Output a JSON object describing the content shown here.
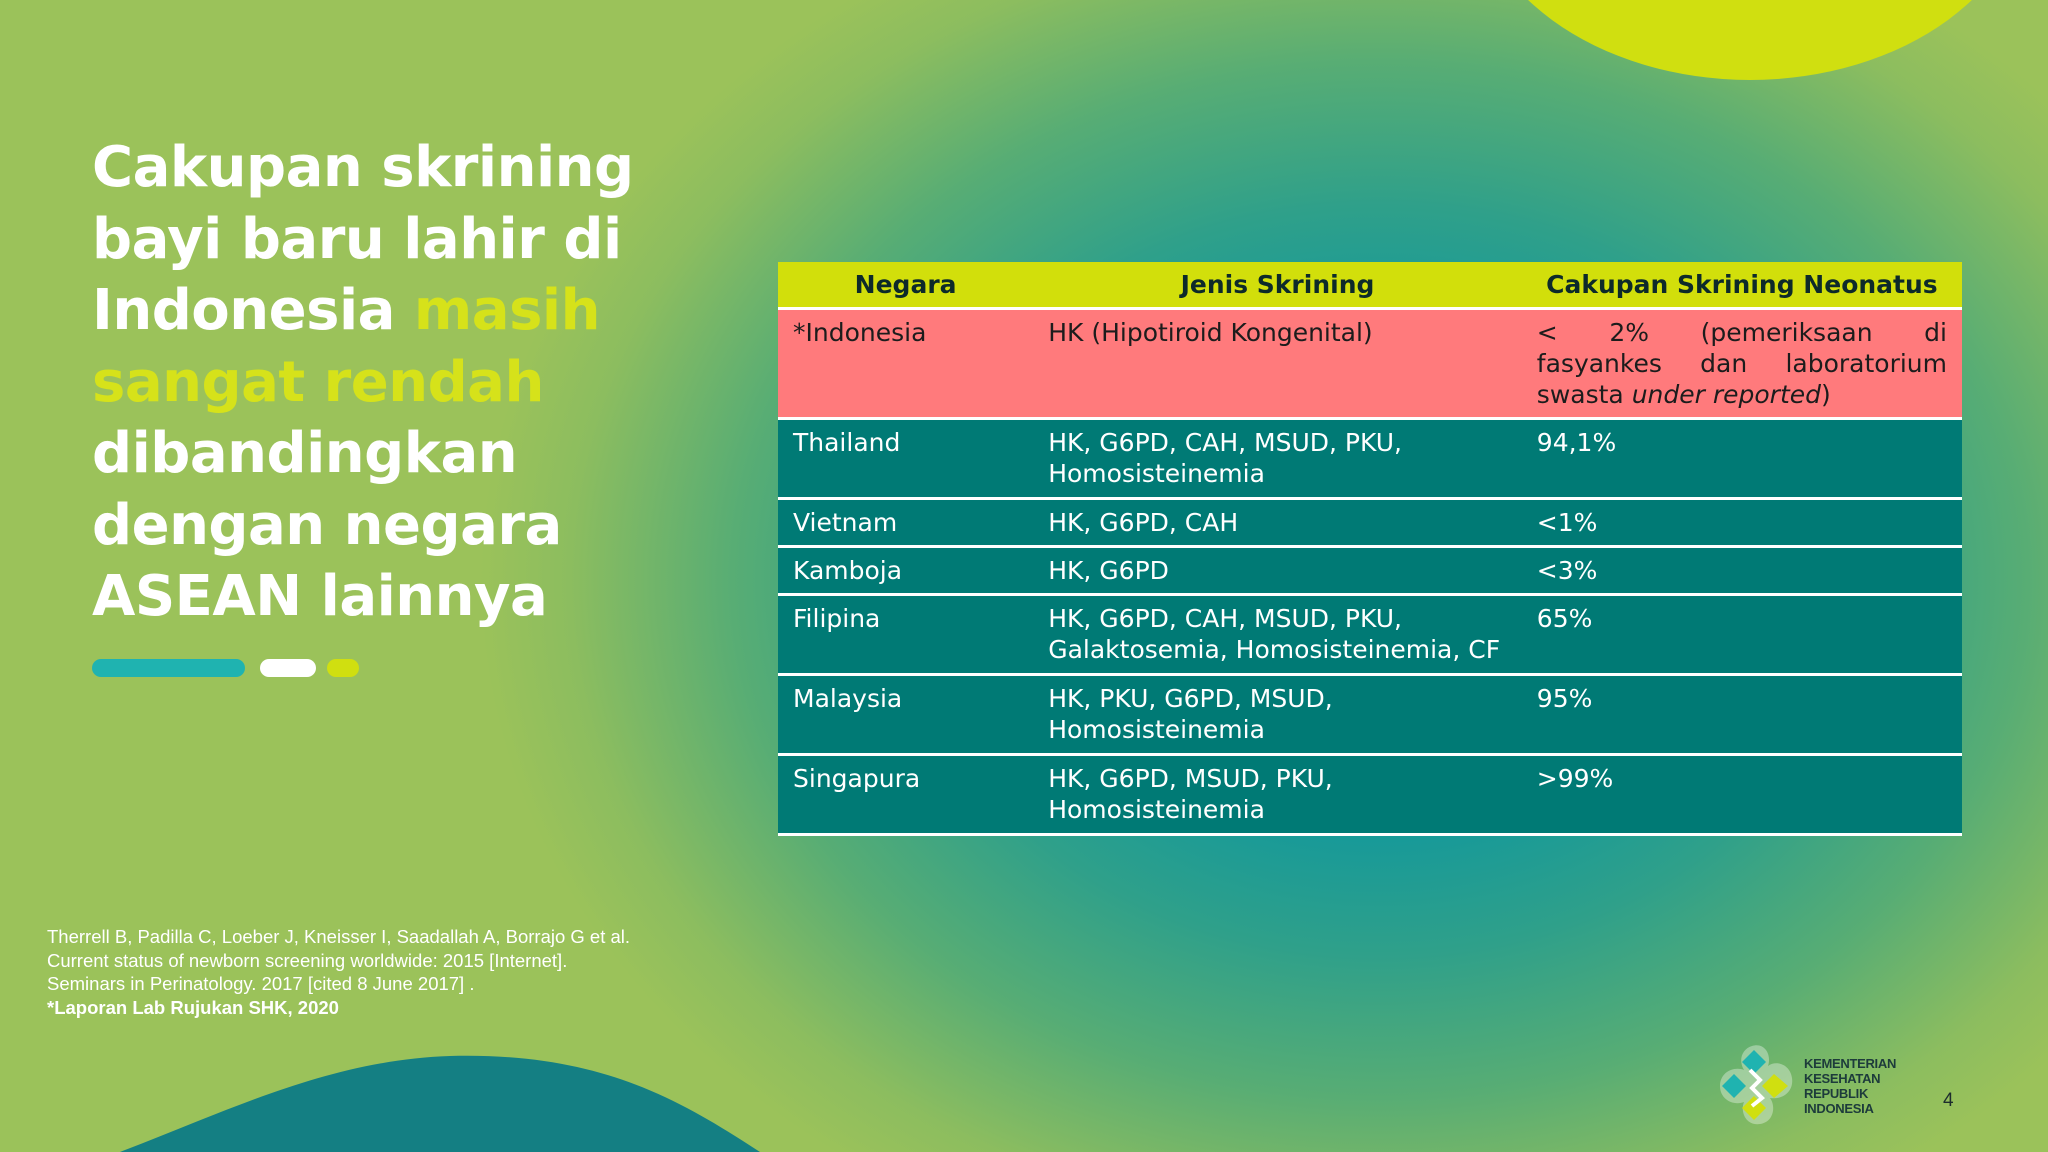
{
  "slide": {
    "title_before": "Cakupan skrining bayi baru lahir di Indonesia ",
    "title_highlight": "masih sangat rendah",
    "title_after": " dibandingkan dengan negara ASEAN lainnya",
    "highlight_color": "#d6e21a",
    "accent_yellow": "#d0df10",
    "accent_teal": "#1fb3b0"
  },
  "table": {
    "headers": {
      "country": "Negara",
      "type": "Jenis Skrining",
      "coverage": "Cakupan Skrining Neonatus"
    },
    "indonesia": {
      "country": "*Indonesia",
      "type": "HK (Hipotiroid Kongenital)",
      "coverage_prefix": "< 2% (pemeriksaan di fasyankes dan laboratorium swasta ",
      "coverage_italic": "under reported",
      "coverage_suffix": ")"
    },
    "rows": [
      {
        "country": "Thailand",
        "type": "HK, G6PD, CAH, MSUD, PKU, Homosisteinemia",
        "coverage": "94,1%"
      },
      {
        "country": "Vietnam",
        "type": "HK, G6PD, CAH",
        "coverage": "<1%"
      },
      {
        "country": "Kamboja",
        "type": "HK, G6PD",
        "coverage": "<3%"
      },
      {
        "country": "Filipina",
        "type": "HK, G6PD, CAH, MSUD, PKU, Galaktosemia, Homosisteinemia, CF",
        "coverage": "65%"
      },
      {
        "country": "Malaysia",
        "type": "HK, PKU, G6PD, MSUD, Homosisteinemia",
        "coverage": "95%"
      },
      {
        "country": "Singapura",
        "type": "HK, G6PD, MSUD, PKU, Homosisteinemia",
        "coverage": ">99%"
      }
    ]
  },
  "references": {
    "citation": "Therrell B, Padilla C, Loeber J, Kneisser I, Saadallah A, Borrajo G et al. Current status of newborn screening worldwide: 2015 [Internet]. Seminars in Perinatology. 2017 [cited 8 June 2017] .",
    "source_note": "*Laporan Lab Rujukan SHK, 2020"
  },
  "footer": {
    "logo_line1": "KEMENTERIAN",
    "logo_line2": "KESEHATAN",
    "logo_line3": "REPUBLIK",
    "logo_line4": "INDONESIA",
    "page_number": "4"
  }
}
